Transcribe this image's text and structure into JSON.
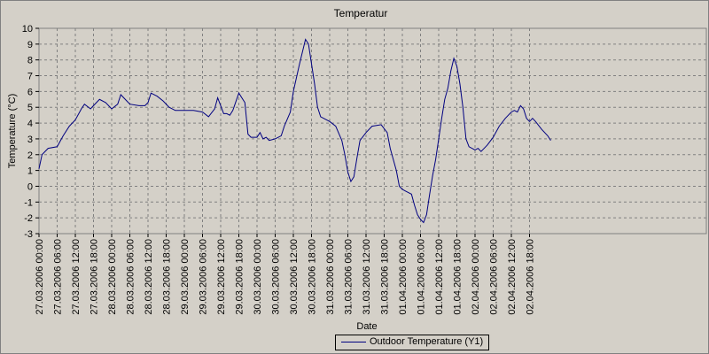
{
  "chart_data": {
    "type": "line",
    "title": "Temperatur",
    "xlabel": "Date",
    "ylabel": "Temperature (°C)",
    "ylim": [
      -3,
      10
    ],
    "yticks": [
      -3,
      -2,
      -1,
      0,
      1,
      2,
      3,
      4,
      5,
      6,
      7,
      8,
      9,
      10
    ],
    "grid": true,
    "legend_position": "bottom-center",
    "x_tick_labels": [
      "27.03.2006 00:00",
      "27.03.2006 06:00",
      "27.03.2006 12:00",
      "27.03.2006 18:00",
      "28.03.2006 00:00",
      "28.03.2006 06:00",
      "28.03.2006 12:00",
      "28.03.2006 18:00",
      "29.03.2006 00:00",
      "29.03.2006 06:00",
      "29.03.2006 12:00",
      "29.03.2006 18:00",
      "30.03.2006 00:00",
      "30.03.2006 06:00",
      "30.03.2006 12:00",
      "30.03.2006 18:00",
      "31.03.2006 00:00",
      "31.03.2006 06:00",
      "31.03.2006 12:00",
      "31.03.2006 18:00",
      "01.04.2006 00:00",
      "01.04.2006 06:00",
      "01.04.2006 12:00",
      "01.04.2006 18:00",
      "02.04.2006 00:00",
      "02.04.2006 06:00",
      "02.04.2006 12:00",
      "02.04.2006 18:00"
    ],
    "series": [
      {
        "name": "Outdoor Temperature (Y1)",
        "color": "#000080",
        "points": [
          [
            "27.03.2006 00:00",
            1.1
          ],
          [
            "27.03.2006 01:00",
            2.0
          ],
          [
            "27.03.2006 03:00",
            2.4
          ],
          [
            "27.03.2006 06:00",
            2.5
          ],
          [
            "27.03.2006 08:00",
            3.2
          ],
          [
            "27.03.2006 10:00",
            3.8
          ],
          [
            "27.03.2006 12:00",
            4.2
          ],
          [
            "27.03.2006 14:00",
            4.9
          ],
          [
            "27.03.2006 15:00",
            5.2
          ],
          [
            "27.03.2006 17:00",
            4.9
          ],
          [
            "27.03.2006 18:00",
            5.1
          ],
          [
            "27.03.2006 20:00",
            5.5
          ],
          [
            "27.03.2006 22:00",
            5.3
          ],
          [
            "28.03.2006 00:00",
            4.9
          ],
          [
            "28.03.2006 02:00",
            5.2
          ],
          [
            "28.03.2006 03:00",
            5.8
          ],
          [
            "28.03.2006 05:00",
            5.4
          ],
          [
            "28.03.2006 06:00",
            5.2
          ],
          [
            "28.03.2006 09:00",
            5.1
          ],
          [
            "28.03.2006 11:00",
            5.1
          ],
          [
            "28.03.2006 12:00",
            5.3
          ],
          [
            "28.03.2006 13:00",
            5.9
          ],
          [
            "28.03.2006 15:00",
            5.7
          ],
          [
            "28.03.2006 17:00",
            5.4
          ],
          [
            "28.03.2006 19:00",
            5.0
          ],
          [
            "28.03.2006 21:00",
            4.8
          ],
          [
            "29.03.2006 00:00",
            4.8
          ],
          [
            "29.03.2006 03:00",
            4.8
          ],
          [
            "29.03.2006 06:00",
            4.7
          ],
          [
            "29.03.2006 08:00",
            4.4
          ],
          [
            "29.03.2006 10:00",
            4.9
          ],
          [
            "29.03.2006 11:00",
            5.6
          ],
          [
            "29.03.2006 13:00",
            4.6
          ],
          [
            "29.03.2006 14:00",
            4.6
          ],
          [
            "29.03.2006 15:00",
            4.5
          ],
          [
            "29.03.2006 16:00",
            4.8
          ],
          [
            "29.03.2006 18:00",
            5.9
          ],
          [
            "29.03.2006 20:00",
            5.3
          ],
          [
            "29.03.2006 21:00",
            3.3
          ],
          [
            "29.03.2006 22:00",
            3.1
          ],
          [
            "30.03.2006 00:00",
            3.1
          ],
          [
            "30.03.2006 01:00",
            3.4
          ],
          [
            "30.03.2006 02:00",
            3.0
          ],
          [
            "30.03.2006 03:00",
            3.1
          ],
          [
            "30.03.2006 04:00",
            2.9
          ],
          [
            "30.03.2006 06:00",
            3.0
          ],
          [
            "30.03.2006 08:00",
            3.2
          ],
          [
            "30.03.2006 09:00",
            3.8
          ],
          [
            "30.03.2006 11:00",
            4.7
          ],
          [
            "30.03.2006 12:00",
            6.0
          ],
          [
            "30.03.2006 14:00",
            7.7
          ],
          [
            "30.03.2006 16:00",
            9.3
          ],
          [
            "30.03.2006 17:00",
            9.0
          ],
          [
            "30.03.2006 19:00",
            6.5
          ],
          [
            "30.03.2006 20:00",
            5.0
          ],
          [
            "30.03.2006 21:00",
            4.4
          ],
          [
            "31.03.2006 00:00",
            4.1
          ],
          [
            "31.03.2006 02:00",
            3.8
          ],
          [
            "31.03.2006 04:00",
            2.9
          ],
          [
            "31.03.2006 05:00",
            2.0
          ],
          [
            "31.03.2006 06:00",
            0.9
          ],
          [
            "31.03.2006 07:00",
            0.3
          ],
          [
            "31.03.2006 08:00",
            0.6
          ],
          [
            "31.03.2006 09:00",
            1.8
          ],
          [
            "31.03.2006 10:00",
            2.9
          ],
          [
            "31.03.2006 12:00",
            3.4
          ],
          [
            "31.03.2006 14:00",
            3.8
          ],
          [
            "31.03.2006 17:00",
            3.9
          ],
          [
            "31.03.2006 19:00",
            3.4
          ],
          [
            "31.03.2006 20:00",
            2.4
          ],
          [
            "31.03.2006 22:00",
            1.0
          ],
          [
            "31.03.2006 23:00",
            0.0
          ],
          [
            "01.04.2006 00:00",
            -0.2
          ],
          [
            "01.04.2006 01:00",
            -0.3
          ],
          [
            "01.04.2006 02:00",
            -0.4
          ],
          [
            "01.04.2006 03:00",
            -0.5
          ],
          [
            "01.04.2006 04:00",
            -1.2
          ],
          [
            "01.04.2006 05:00",
            -1.8
          ],
          [
            "01.04.2006 06:00",
            -2.1
          ],
          [
            "01.04.2006 07:00",
            -2.3
          ],
          [
            "01.04.2006 08:00",
            -1.8
          ],
          [
            "01.04.2006 09:00",
            -0.5
          ],
          [
            "01.04.2006 10:00",
            0.7
          ],
          [
            "01.04.2006 11:00",
            1.7
          ],
          [
            "01.04.2006 12:00",
            3.0
          ],
          [
            "01.04.2006 13:00",
            4.3
          ],
          [
            "01.04.2006 14:00",
            5.5
          ],
          [
            "01.04.2006 15:00",
            6.2
          ],
          [
            "01.04.2006 16:00",
            7.3
          ],
          [
            "01.04.2006 17:00",
            8.1
          ],
          [
            "01.04.2006 18:00",
            7.6
          ],
          [
            "01.04.2006 19:00",
            6.5
          ],
          [
            "01.04.2006 20:00",
            5.0
          ],
          [
            "01.04.2006 21:00",
            3.0
          ],
          [
            "01.04.2006 22:00",
            2.5
          ],
          [
            "02.04.2006 00:00",
            2.3
          ],
          [
            "02.04.2006 01:00",
            2.4
          ],
          [
            "02.04.2006 02:00",
            2.2
          ],
          [
            "02.04.2006 04:00",
            2.6
          ],
          [
            "02.04.2006 06:00",
            3.1
          ],
          [
            "02.04.2006 08:00",
            3.8
          ],
          [
            "02.04.2006 10:00",
            4.3
          ],
          [
            "02.04.2006 12:00",
            4.7
          ],
          [
            "02.04.2006 13:00",
            4.8
          ],
          [
            "02.04.2006 14:00",
            4.7
          ],
          [
            "02.04.2006 15:00",
            5.1
          ],
          [
            "02.04.2006 16:00",
            4.9
          ],
          [
            "02.04.2006 17:00",
            4.3
          ],
          [
            "02.04.2006 18:00",
            4.1
          ],
          [
            "02.04.2006 19:00",
            4.3
          ],
          [
            "02.04.2006 20:00",
            4.1
          ],
          [
            "02.04.2006 22:00",
            3.6
          ],
          [
            "03.04.2006 00:00",
            3.2
          ],
          [
            "03.04.2006 01:00",
            2.9
          ]
        ]
      }
    ]
  }
}
